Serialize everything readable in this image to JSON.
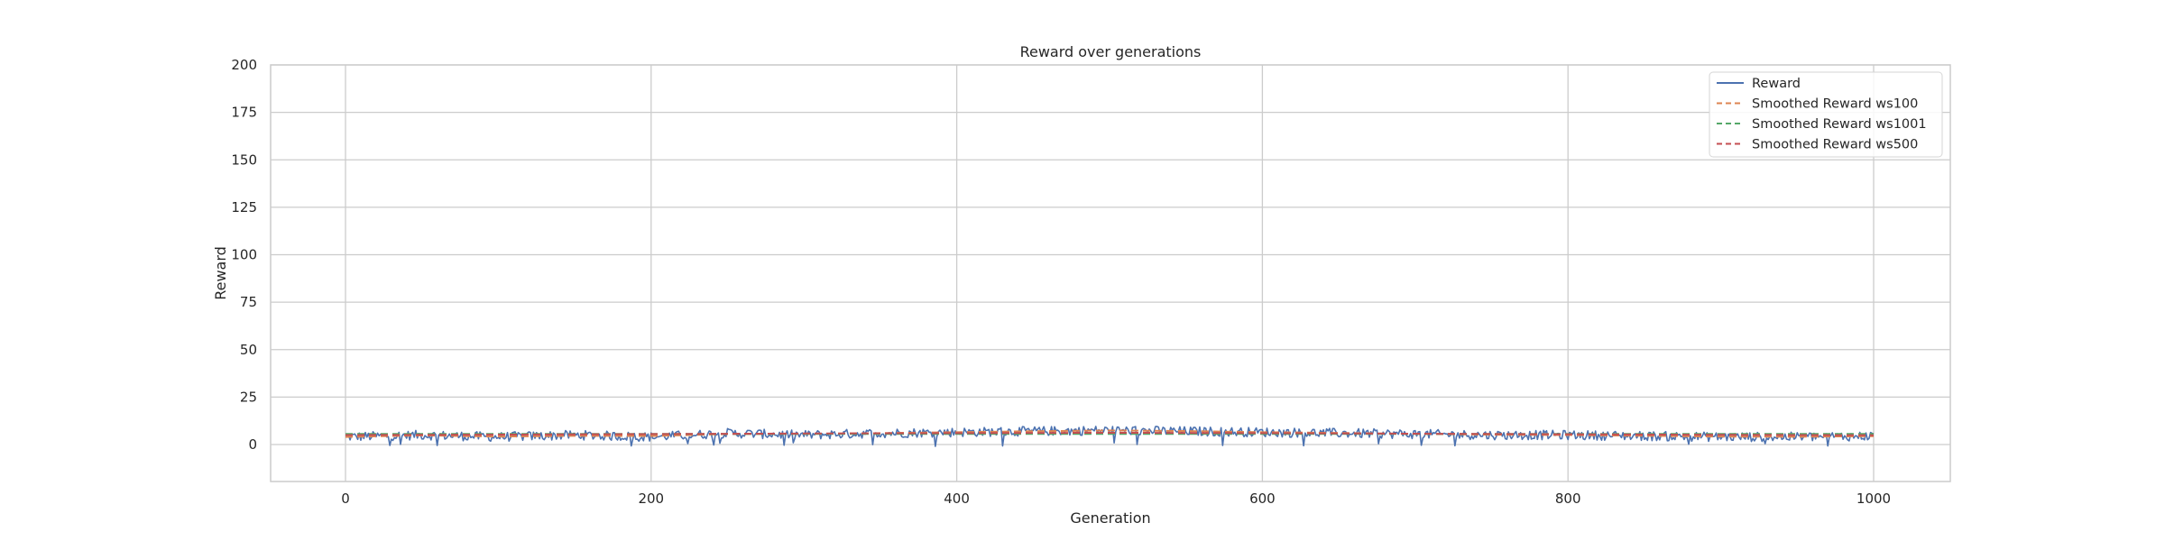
{
  "chart_data": {
    "type": "line",
    "title": "Reward over generations",
    "xlabel": "Generation",
    "ylabel": "Reward",
    "xlim": [
      -45,
      1050
    ],
    "ylim": [
      -20,
      200
    ],
    "xticks": [
      0,
      200,
      400,
      600,
      800,
      1000
    ],
    "yticks": [
      0,
      25,
      50,
      75,
      100,
      125,
      150,
      175,
      200
    ],
    "grid": true,
    "legend_position": "top-right",
    "generation_range": [
      0,
      1000
    ],
    "raw_series": {
      "name": "Reward",
      "color": "#4c72b0",
      "style": "solid",
      "anchor_x": [
        0,
        50,
        100,
        150,
        200,
        250,
        300,
        350,
        400,
        450,
        500,
        550,
        600,
        650,
        700,
        750,
        800,
        850,
        900,
        950,
        1000
      ],
      "anchor_y": [
        4,
        5,
        4,
        5,
        4,
        6,
        5,
        6,
        6.5,
        7,
        7.5,
        7,
        6.5,
        6,
        5.5,
        5,
        5,
        4.5,
        4,
        4,
        4.5
      ],
      "noise_amplitude": 2.5,
      "min_dip": -1
    },
    "series": [
      {
        "name": "Smoothed Reward ws100",
        "color": "#dd8452",
        "style": "dashed",
        "x": [
          0,
          50,
          100,
          150,
          200,
          250,
          300,
          350,
          400,
          450,
          500,
          550,
          600,
          650,
          700,
          750,
          800,
          850,
          900,
          950,
          1000
        ],
        "values": [
          4,
          4.8,
          4.2,
          4.6,
          4.5,
          5.5,
          5.6,
          6.0,
          6.5,
          7.0,
          7.4,
          7.1,
          6.5,
          6.1,
          5.6,
          5.2,
          5.0,
          4.6,
          4.2,
          4.1,
          4.4
        ]
      },
      {
        "name": "Smoothed Reward ws1001",
        "color": "#55a868",
        "style": "dashed",
        "x": [
          0,
          1000
        ],
        "values": [
          5.6,
          5.6
        ]
      },
      {
        "name": "Smoothed Reward ws500",
        "color": "#c44e52",
        "style": "dashed",
        "x": [
          0,
          100,
          200,
          300,
          400,
          500,
          600,
          700,
          800,
          900,
          1000
        ],
        "values": [
          5.0,
          5.2,
          5.5,
          5.8,
          6.0,
          6.2,
          6.0,
          5.7,
          5.4,
          5.1,
          4.9
        ]
      }
    ],
    "legend": [
      "Reward",
      "Smoothed Reward ws100",
      "Smoothed Reward ws1001",
      "Smoothed Reward ws500"
    ]
  }
}
